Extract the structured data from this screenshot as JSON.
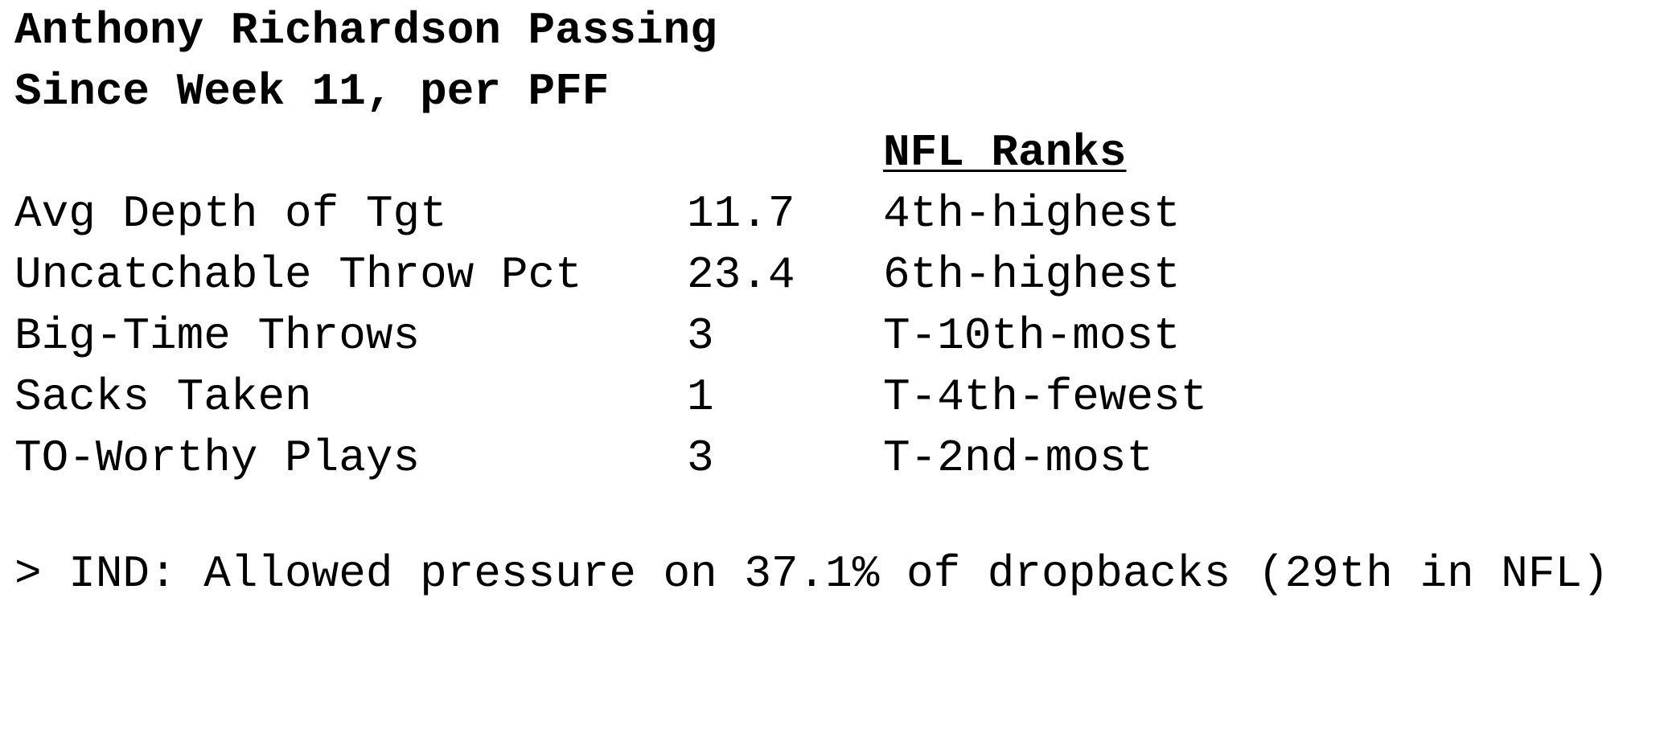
{
  "title": {
    "line1": "Anthony Richardson Passing",
    "line2": "Since Week 11, per PFF"
  },
  "table": {
    "ranks_header": "NFL Ranks",
    "rows": [
      {
        "label": "Avg Depth of Tgt",
        "value": "11.7",
        "rank": "4th-highest"
      },
      {
        "label": "Uncatchable Throw Pct",
        "value": "23.4",
        "rank": "6th-highest"
      },
      {
        "label": "Big-Time Throws",
        "value": "3",
        "rank": "T-10th-most"
      },
      {
        "label": "Sacks Taken",
        "value": "1",
        "rank": "T-4th-fewest"
      },
      {
        "label": "TO-Worthy Plays",
        "value": "3",
        "rank": "T-2nd-most"
      }
    ]
  },
  "footnote": "> IND: Allowed pressure on 37.1% of dropbacks (29th in NFL)"
}
